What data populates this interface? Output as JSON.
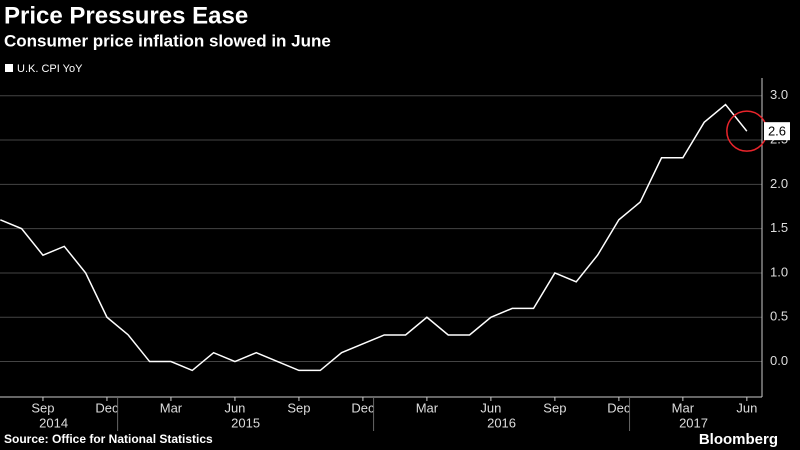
{
  "chart_data": {
    "type": "line",
    "title": "Price Pressures Ease",
    "subtitle": "Consumer price inflation slowed in June",
    "source": "Source: Office for National Statistics",
    "brand": "Bloomberg",
    "categories": [
      null,
      null,
      "Sep",
      null,
      null,
      "Dec",
      null,
      null,
      "Mar",
      null,
      null,
      "Jun",
      null,
      null,
      "Sep",
      null,
      null,
      "Dec",
      null,
      null,
      "Mar",
      null,
      null,
      "Jun",
      null,
      null,
      "Sep",
      null,
      null,
      "Dec",
      null,
      null,
      "Mar",
      null,
      null,
      "Jun"
    ],
    "years": [
      "2014",
      "2015",
      "2016",
      "2017"
    ],
    "series": [
      {
        "name": "U.K. CPI YoY",
        "color": "#ffffff",
        "values": [
          1.6,
          1.5,
          1.2,
          1.3,
          1.0,
          0.5,
          0.3,
          0.0,
          0.0,
          -0.1,
          0.1,
          0.0,
          0.1,
          0.0,
          -0.1,
          -0.1,
          0.1,
          0.2,
          0.3,
          0.3,
          0.5,
          0.3,
          0.3,
          0.5,
          0.6,
          0.6,
          1.0,
          0.9,
          1.2,
          1.6,
          1.8,
          2.3,
          2.3,
          2.7,
          2.9,
          2.6
        ]
      }
    ],
    "ylim": [
      -0.4,
      3.2
    ],
    "yticks": [
      {
        "value": 0,
        "label": "0.0"
      },
      0.5,
      {
        "value": 1,
        "label": "1.0"
      },
      1.5,
      {
        "value": 2,
        "label": "2.0"
      },
      2.5,
      {
        "value": 3,
        "label": "3.0"
      }
    ],
    "grid": true,
    "highlight_color": "#e8242b"
  }
}
